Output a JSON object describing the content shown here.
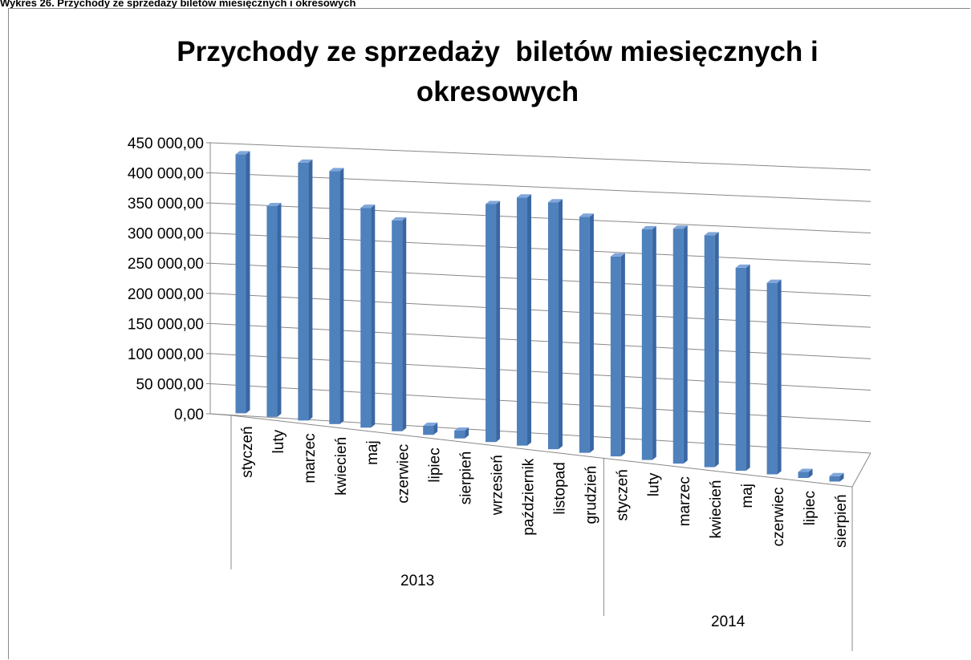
{
  "caption": "Wykres 26. Przychody ze sprzedaży biletów miesięcznych i okresowych",
  "chart_data": {
    "type": "bar",
    "title": "Przychody ze sprzedaży  biletów miesięcznych i okresowych",
    "categories": [
      "styczeń",
      "luty",
      "marzec",
      "kwiecień",
      "maj",
      "czerwiec",
      "lipiec",
      "sierpień",
      "wrzesień",
      "październik",
      "listopad",
      "grudzień",
      "styczeń",
      "luty",
      "marzec",
      "kwiecień",
      "maj",
      "czerwiec",
      "lipiec",
      "sierpień"
    ],
    "category_groups": [
      {
        "label": "2013",
        "span": 12
      },
      {
        "label": "2014",
        "span": 8
      }
    ],
    "values": [
      430000,
      350000,
      428000,
      420000,
      365000,
      350000,
      15000,
      13000,
      395000,
      412000,
      410000,
      392000,
      332000,
      383000,
      390000,
      385000,
      337000,
      318000,
      10000,
      9000
    ],
    "color": "#4f81bd",
    "ylim": [
      0,
      450000
    ],
    "yticks": [
      {
        "value": 0,
        "label": "0,00"
      },
      {
        "value": 50000,
        "label": "50 000,00"
      },
      {
        "value": 100000,
        "label": "100 000,00"
      },
      {
        "value": 150000,
        "label": "150 000,00"
      },
      {
        "value": 200000,
        "label": "200 000,00"
      },
      {
        "value": 250000,
        "label": "250 000,00"
      },
      {
        "value": 300000,
        "label": "300 000,00"
      },
      {
        "value": 350000,
        "label": "350 000,00"
      },
      {
        "value": 400000,
        "label": "400 000,00"
      },
      {
        "value": 450000,
        "label": "450 000,00"
      }
    ],
    "grid": true
  }
}
